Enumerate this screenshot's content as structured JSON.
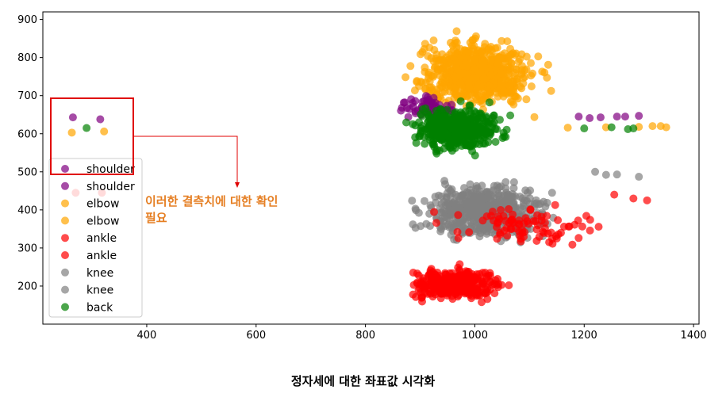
{
  "chart_data": {
    "type": "scatter",
    "xlim": [
      210,
      1410
    ],
    "ylim": [
      100,
      920
    ],
    "x_ticks": [
      400,
      600,
      800,
      1000,
      1200,
      1400
    ],
    "y_ticks": [
      200,
      300,
      400,
      500,
      600,
      700,
      800,
      900
    ],
    "grid": false,
    "legend": {
      "placement": "lower-left",
      "labels": [
        "shoulder",
        "shoulder",
        "elbow",
        "elbow",
        "ankle",
        "ankle",
        "knee",
        "knee",
        "back"
      ]
    },
    "series_colors": {
      "shoulder": "#800080",
      "elbow": "#ffa500",
      "ankle": "#ff0000",
      "knee": "#808080",
      "back": "#008000"
    },
    "outlier_points": [
      {
        "series": "shoulder",
        "x": 265,
        "y": 643
      },
      {
        "series": "shoulder",
        "x": 315,
        "y": 638
      },
      {
        "series": "elbow",
        "x": 263,
        "y": 603
      },
      {
        "series": "elbow",
        "x": 322,
        "y": 606
      },
      {
        "series": "back",
        "x": 290,
        "y": 615
      },
      {
        "series": "ankle",
        "x": 270,
        "y": 445
      },
      {
        "series": "ankle",
        "x": 318,
        "y": 445
      }
    ],
    "clusters": [
      {
        "series": "knee",
        "x": [
          835,
          1200
        ],
        "y": [
          280,
          510
        ],
        "n": 520
      },
      {
        "series": "ankle",
        "x": [
          835,
          1100
        ],
        "y": [
          140,
          270
        ],
        "n": 360
      },
      {
        "series": "ankle",
        "x": [
          850,
          1320
        ],
        "y": [
          270,
          440
        ],
        "n": 90
      },
      {
        "series": "elbow",
        "x": [
          830,
          1170
        ],
        "y": [
          620,
          900
        ],
        "n": 700
      },
      {
        "series": "shoulder",
        "x": [
          835,
          1000
        ],
        "y": [
          620,
          720
        ],
        "n": 60
      },
      {
        "series": "back",
        "x": [
          840,
          1100
        ],
        "y": [
          520,
          710
        ],
        "n": 430
      }
    ],
    "tail_points": [
      {
        "series": "shoulder",
        "x": 1230,
        "y": 643
      },
      {
        "series": "shoulder",
        "x": 1260,
        "y": 645
      },
      {
        "series": "shoulder",
        "x": 1275,
        "y": 645
      },
      {
        "series": "shoulder",
        "x": 1300,
        "y": 647
      },
      {
        "series": "shoulder",
        "x": 1190,
        "y": 645
      },
      {
        "series": "shoulder",
        "x": 1210,
        "y": 641
      },
      {
        "series": "elbow",
        "x": 1240,
        "y": 617
      },
      {
        "series": "elbow",
        "x": 1300,
        "y": 618
      },
      {
        "series": "elbow",
        "x": 1325,
        "y": 620
      },
      {
        "series": "elbow",
        "x": 1340,
        "y": 620
      },
      {
        "series": "elbow",
        "x": 1350,
        "y": 617
      },
      {
        "series": "elbow",
        "x": 1170,
        "y": 616
      },
      {
        "series": "back",
        "x": 1250,
        "y": 617
      },
      {
        "series": "back",
        "x": 1280,
        "y": 612
      },
      {
        "series": "back",
        "x": 1290,
        "y": 614
      },
      {
        "series": "back",
        "x": 1200,
        "y": 614
      },
      {
        "series": "knee",
        "x": 1220,
        "y": 500
      },
      {
        "series": "knee",
        "x": 1260,
        "y": 493
      },
      {
        "series": "knee",
        "x": 1300,
        "y": 487
      },
      {
        "series": "knee",
        "x": 1240,
        "y": 492
      },
      {
        "series": "ankle",
        "x": 1255,
        "y": 440
      },
      {
        "series": "ankle",
        "x": 1290,
        "y": 430
      },
      {
        "series": "ankle",
        "x": 1315,
        "y": 425
      }
    ]
  },
  "annotation_text": "이러한 결측치에 대한 확인\n필요",
  "caption": "정자세에 대한 좌표값 시각화"
}
